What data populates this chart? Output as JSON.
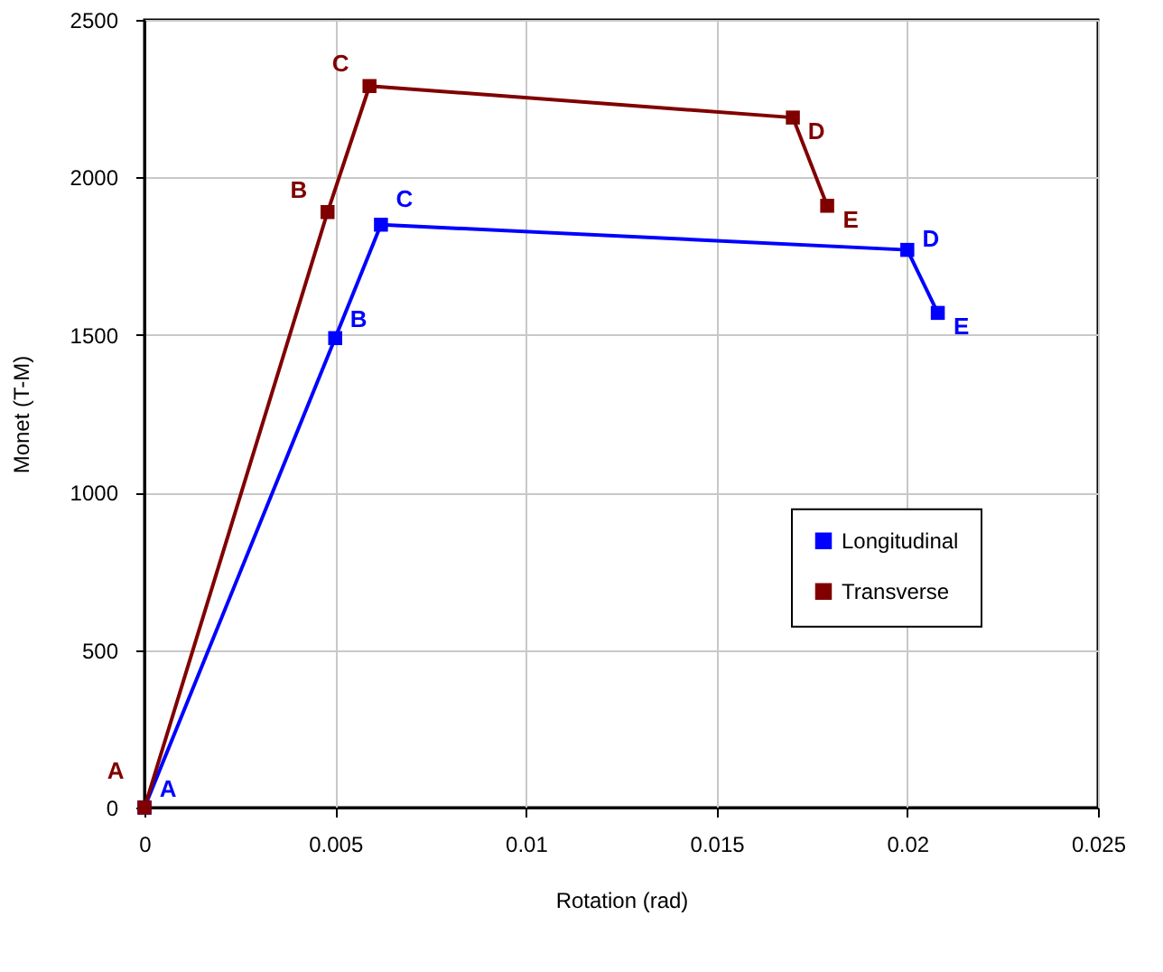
{
  "chart_data": {
    "type": "line",
    "xlabel": "Rotation (rad)",
    "ylabel": "Monet (T-M)",
    "xlim": [
      0,
      0.025
    ],
    "xticks": [
      0,
      0.005,
      0.01,
      0.015,
      0.02,
      0.025
    ],
    "ylim": [
      0,
      2500
    ],
    "yticks": [
      0,
      500,
      1000,
      1500,
      2000,
      2500
    ],
    "grid": true,
    "legend": "right",
    "marker": "square",
    "line_style": "solid",
    "series": [
      {
        "name": "Longitudinal",
        "color": "#0000ff",
        "x": [
          0,
          0.005,
          0.0062,
          0.02,
          0.0208
        ],
        "values": [
          0,
          1490,
          1850,
          1770,
          1570
        ]
      },
      {
        "name": "Transverse",
        "color": "#800000",
        "x": [
          0,
          0.0048,
          0.0059,
          0.017,
          0.0179
        ],
        "values": [
          0,
          1890,
          2290,
          2190,
          1910
        ]
      }
    ],
    "annotations": [
      {
        "text": "A",
        "x": 0,
        "y": 0
      },
      {
        "text": "B",
        "x": 0.005,
        "y": 1490
      },
      {
        "text": "C",
        "x": 0.0062,
        "y": 1850
      },
      {
        "text": "D",
        "x": 0.02,
        "y": 1770
      },
      {
        "text": "E",
        "x": 0.0208,
        "y": 1570
      },
      {
        "text": "A",
        "x": 0,
        "y": 0
      },
      {
        "text": "B",
        "x": 0.0048,
        "y": 1890
      },
      {
        "text": "C",
        "x": 0.0059,
        "y": 2290
      },
      {
        "text": "D",
        "x": 0.017,
        "y": 2190
      },
      {
        "text": "E",
        "x": 0.0179,
        "y": 1910
      }
    ]
  }
}
